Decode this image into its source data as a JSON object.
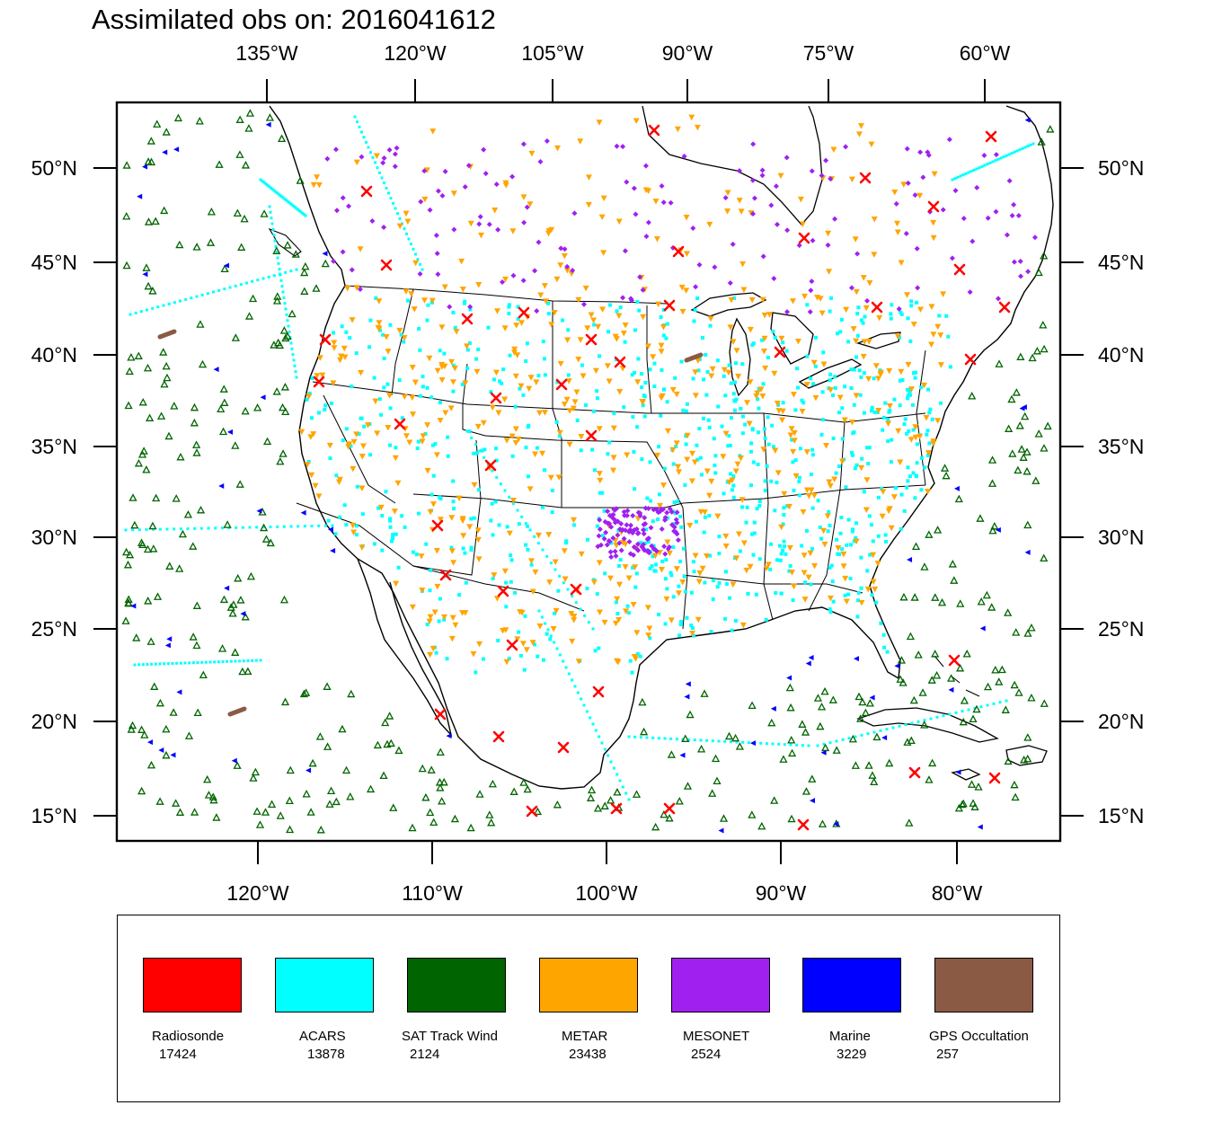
{
  "title": "Assimilated obs on: 2016041612",
  "axes": {
    "top_ticks": [
      "135°W",
      "120°W",
      "105°W",
      "90°W",
      "75°W",
      "60°W"
    ],
    "bottom_ticks": [
      "120°W",
      "110°W",
      "100°W",
      "90°W",
      "80°W"
    ],
    "left_ticks": [
      "50°N",
      "45°N",
      "40°N",
      "35°N",
      "30°N",
      "25°N",
      "20°N",
      "15°N"
    ],
    "right_ticks": [
      "50°N",
      "45°N",
      "40°N",
      "35°N",
      "30°N",
      "25°N",
      "20°N",
      "15°N"
    ]
  },
  "legend": [
    {
      "name": "Radiosonde",
      "count": "17424",
      "color": "#ff0000"
    },
    {
      "name": "ACARS",
      "count": "13878",
      "color": "#00ffff"
    },
    {
      "name": "SAT Track Wind",
      "count": "2124",
      "color": "#006400"
    },
    {
      "name": "METAR",
      "count": "23438",
      "color": "#ffa500"
    },
    {
      "name": "MESONET",
      "count": "2524",
      "color": "#a020f0"
    },
    {
      "name": "Marine",
      "count": "3229",
      "color": "#0000ff"
    },
    {
      "name": "GPS Occultation",
      "count": "257",
      "color": "#8b5a45"
    }
  ],
  "colors": {
    "radiosonde": "#ff0000",
    "acars": "#00ffff",
    "sat_track_wind": "#006400",
    "metar": "#ffa500",
    "mesonet": "#a020f0",
    "marine": "#0000ff",
    "gps": "#8b5a45",
    "coast": "#000000"
  }
}
